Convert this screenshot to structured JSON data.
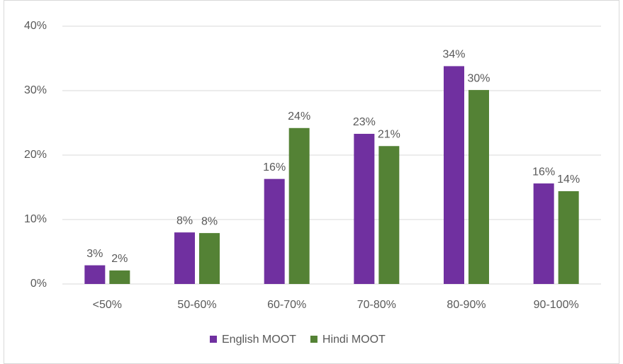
{
  "chart_data": {
    "type": "bar",
    "categories": [
      "<50%",
      "50-60%",
      "60-70%",
      "70-80%",
      "80-90%",
      "90-100%"
    ],
    "series": [
      {
        "name": "English MOOT",
        "color": "#7030a0",
        "values": [
          2.9,
          8.0,
          16.3,
          23.3,
          33.8,
          15.6
        ],
        "value_labels": [
          "3%",
          "8%",
          "16%",
          "23%",
          "34%",
          "16%"
        ]
      },
      {
        "name": "Hindi MOOT",
        "color": "#548235",
        "values": [
          2.1,
          7.9,
          24.2,
          21.4,
          30.1,
          14.4
        ],
        "value_labels": [
          "2%",
          "8%",
          "24%",
          "21%",
          "30%",
          "14%"
        ]
      }
    ],
    "ylim": [
      0,
      40
    ],
    "yticks": [
      {
        "value": 0,
        "label": "0%"
      },
      {
        "value": 10,
        "label": "10%"
      },
      {
        "value": 20,
        "label": "20%"
      },
      {
        "value": 30,
        "label": "30%"
      },
      {
        "value": 40,
        "label": "40%"
      }
    ],
    "grid": true,
    "legend": "bottom"
  }
}
